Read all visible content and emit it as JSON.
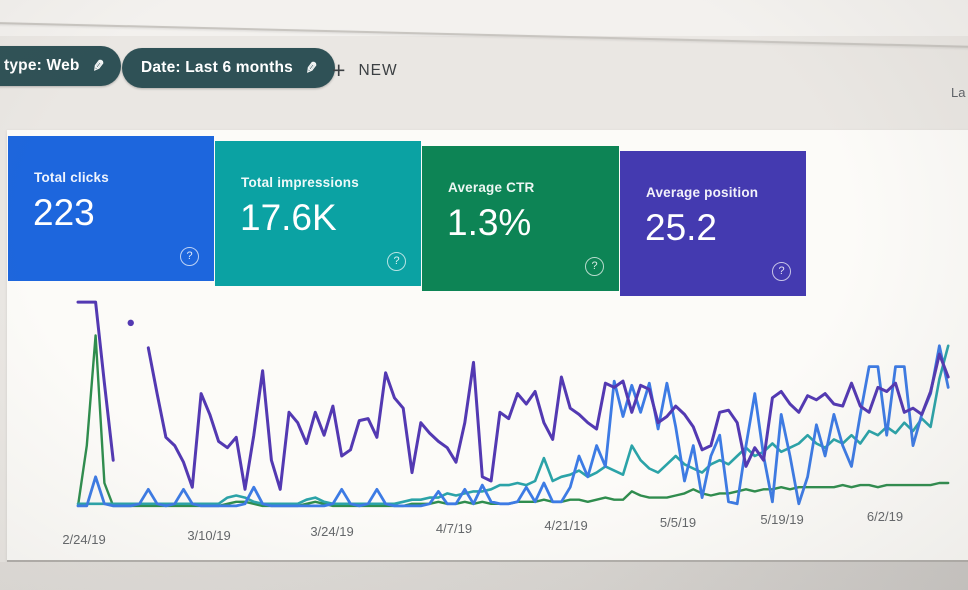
{
  "header": {
    "chips": [
      {
        "label": "type: Web"
      },
      {
        "label": "Date: Last 6 months"
      }
    ],
    "edit_glyph": "✎",
    "plus_glyph": "+",
    "new_button_label": "NEW",
    "partial_right_text": "La"
  },
  "cards": [
    {
      "label": "Total clicks",
      "value": "223",
      "color": "#1d66dd",
      "help_glyph": "?"
    },
    {
      "label": "Total impressions",
      "value": "17.6K",
      "color": "#0ba2a3",
      "help_glyph": "?"
    },
    {
      "label": "Average CTR",
      "value": "1.3%",
      "color": "#0d8455",
      "help_glyph": "?"
    },
    {
      "label": "Average position",
      "value": "25.2",
      "color": "#443ab0",
      "help_glyph": "?"
    }
  ],
  "chart_data": {
    "type": "line",
    "title": "Search performance over time (no visible chart title)",
    "xlabel": "",
    "ylabel": "",
    "grid": false,
    "legend_position": "none (series colors match metric cards)",
    "x_axis": {
      "tick_labels": [
        "2/24/19",
        "3/10/19",
        "3/24/19",
        "4/7/19",
        "4/21/19",
        "5/5/19",
        "5/19/19",
        "6/2/19"
      ],
      "tick_days": [
        0,
        14,
        28,
        42,
        56,
        70,
        84,
        98
      ],
      "domain_days": [
        0,
        99
      ]
    },
    "y_axis": {
      "note": "no visible scale or gridlines; values estimated as percent of plot height (0 = baseline, 100 = top)",
      "range": [
        0,
        100
      ]
    },
    "series": [
      {
        "name": "Average CTR",
        "color": "#2f8d4e",
        "values": [
          1,
          30,
          83,
          12,
          1,
          1,
          1,
          1,
          1,
          1,
          1,
          1,
          1,
          1,
          1,
          1,
          1,
          2,
          3,
          3,
          2,
          1,
          1,
          1,
          1,
          1,
          2,
          3,
          2,
          1,
          1,
          1,
          1,
          1,
          1,
          1,
          1,
          1,
          2,
          2,
          2,
          3,
          2,
          2,
          3,
          2,
          3,
          2,
          2,
          2,
          3,
          3,
          3,
          4,
          3,
          3,
          4,
          4,
          3,
          4,
          5,
          4,
          4,
          8,
          6,
          5,
          5,
          5,
          6,
          7,
          9,
          7,
          6,
          7,
          7,
          8,
          9,
          8,
          9,
          9,
          10,
          9,
          10,
          10,
          10,
          10,
          10,
          11,
          10,
          11,
          11,
          10,
          11,
          11,
          11,
          11,
          11,
          11,
          12,
          12
        ]
      },
      {
        "name": "Total impressions",
        "color": "#2ba3a8",
        "values": [
          2,
          2,
          2,
          2,
          2,
          2,
          2,
          2,
          2,
          2,
          2,
          2,
          2,
          2,
          2,
          2,
          2,
          5,
          6,
          5,
          3,
          2,
          2,
          2,
          2,
          2,
          4,
          5,
          3,
          2,
          2,
          2,
          2,
          2,
          2,
          2,
          2,
          3,
          4,
          4,
          5,
          5,
          7,
          6,
          7,
          8,
          8,
          9,
          11,
          11,
          12,
          11,
          13,
          24,
          13,
          15,
          16,
          18,
          15,
          17,
          20,
          18,
          16,
          30,
          23,
          19,
          17,
          21,
          25,
          21,
          19,
          17,
          21,
          23,
          21,
          25,
          29,
          25,
          27,
          31,
          27,
          29,
          31,
          35,
          31,
          29,
          33,
          31,
          35,
          31,
          37,
          35,
          39,
          36,
          41,
          37,
          43,
          39,
          62,
          78
        ]
      },
      {
        "name": "Total clicks",
        "color": "#3d7be4",
        "values": [
          1,
          1,
          15,
          2,
          1,
          1,
          1,
          2,
          9,
          2,
          1,
          2,
          9,
          2,
          1,
          1,
          1,
          1,
          1,
          2,
          10,
          2,
          1,
          1,
          1,
          1,
          1,
          1,
          1,
          2,
          9,
          2,
          1,
          2,
          9,
          2,
          1,
          1,
          1,
          1,
          2,
          8,
          2,
          2,
          9,
          2,
          11,
          3,
          2,
          2,
          3,
          10,
          3,
          12,
          3,
          3,
          10,
          25,
          15,
          30,
          20,
          61,
          44,
          59,
          46,
          60,
          38,
          60,
          39,
          13,
          30,
          5,
          25,
          35,
          3,
          2,
          30,
          55,
          25,
          3,
          45,
          25,
          2,
          15,
          40,
          25,
          45,
          30,
          20,
          45,
          68,
          68,
          35,
          68,
          68,
          30,
          45,
          55,
          78,
          58
        ]
      },
      {
        "name": "Average position",
        "color": "#5339b2",
        "values": [
          99,
          99,
          99,
          60,
          23,
          null,
          89,
          null,
          77,
          55,
          34,
          30,
          22,
          10,
          55,
          45,
          32,
          29,
          34,
          9,
          35,
          66,
          23,
          9,
          46,
          41,
          31,
          46,
          35,
          49,
          25,
          28,
          42,
          43,
          34,
          65,
          53,
          48,
          17,
          41,
          36,
          32,
          29,
          22,
          41,
          70,
          15,
          13,
          46,
          43,
          55,
          50,
          56,
          41,
          33,
          63,
          48,
          45,
          41,
          38,
          60,
          58,
          61,
          46,
          59,
          57,
          41,
          44,
          49,
          45,
          39,
          28,
          30,
          46,
          47,
          41,
          20,
          29,
          23,
          53,
          56,
          50,
          46,
          54,
          52,
          55,
          50,
          49,
          60,
          49,
          46,
          58,
          56,
          60,
          46,
          48,
          45,
          56,
          74,
          63
        ]
      }
    ]
  }
}
